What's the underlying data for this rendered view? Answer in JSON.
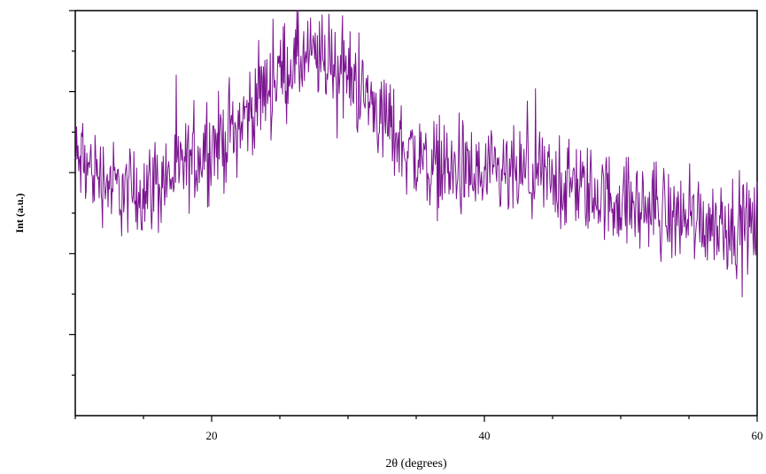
{
  "chart_data": {
    "type": "line",
    "title": "",
    "xlabel": "2θ (degrees)",
    "ylabel": "Int (a.u.)",
    "xlim": [
      10,
      60
    ],
    "ylim": [
      0,
      10
    ],
    "x_ticks": [
      20,
      40,
      60
    ],
    "x_tick_labels": [
      "20",
      "40",
      "60"
    ],
    "y_tick_labels_shown": false,
    "grid": false,
    "line_color": "#7a1490",
    "series": [
      {
        "x": [
          10,
          11,
          12,
          13,
          14,
          15,
          16,
          17,
          18,
          19,
          20,
          21,
          22,
          23,
          24,
          25,
          26,
          27,
          28,
          29,
          30,
          31,
          32,
          33,
          34,
          35,
          36,
          37,
          38,
          39,
          40,
          41,
          42,
          43,
          44,
          45,
          46,
          47,
          48,
          49,
          50,
          51,
          52,
          53,
          54,
          55,
          56,
          57,
          58,
          59,
          60
        ],
        "values": [
          6.3,
          6.1,
          5.9,
          5.6,
          5.5,
          5.6,
          5.8,
          5.9,
          6.1,
          6.4,
          6.7,
          6.8,
          7.2,
          7.6,
          8.1,
          8.5,
          8.7,
          8.8,
          8.8,
          8.7,
          8.4,
          8.0,
          7.6,
          7.1,
          6.7,
          6.4,
          6.2,
          6.1,
          6.0,
          5.9,
          5.85,
          5.85,
          5.9,
          5.9,
          5.85,
          5.8,
          5.7,
          5.6,
          5.5,
          5.4,
          5.3,
          5.2,
          5.1,
          5.0,
          4.95,
          4.9,
          4.85,
          4.8,
          4.75,
          4.7,
          4.7
        ],
        "noise_amplitude": 0.55
      }
    ]
  }
}
